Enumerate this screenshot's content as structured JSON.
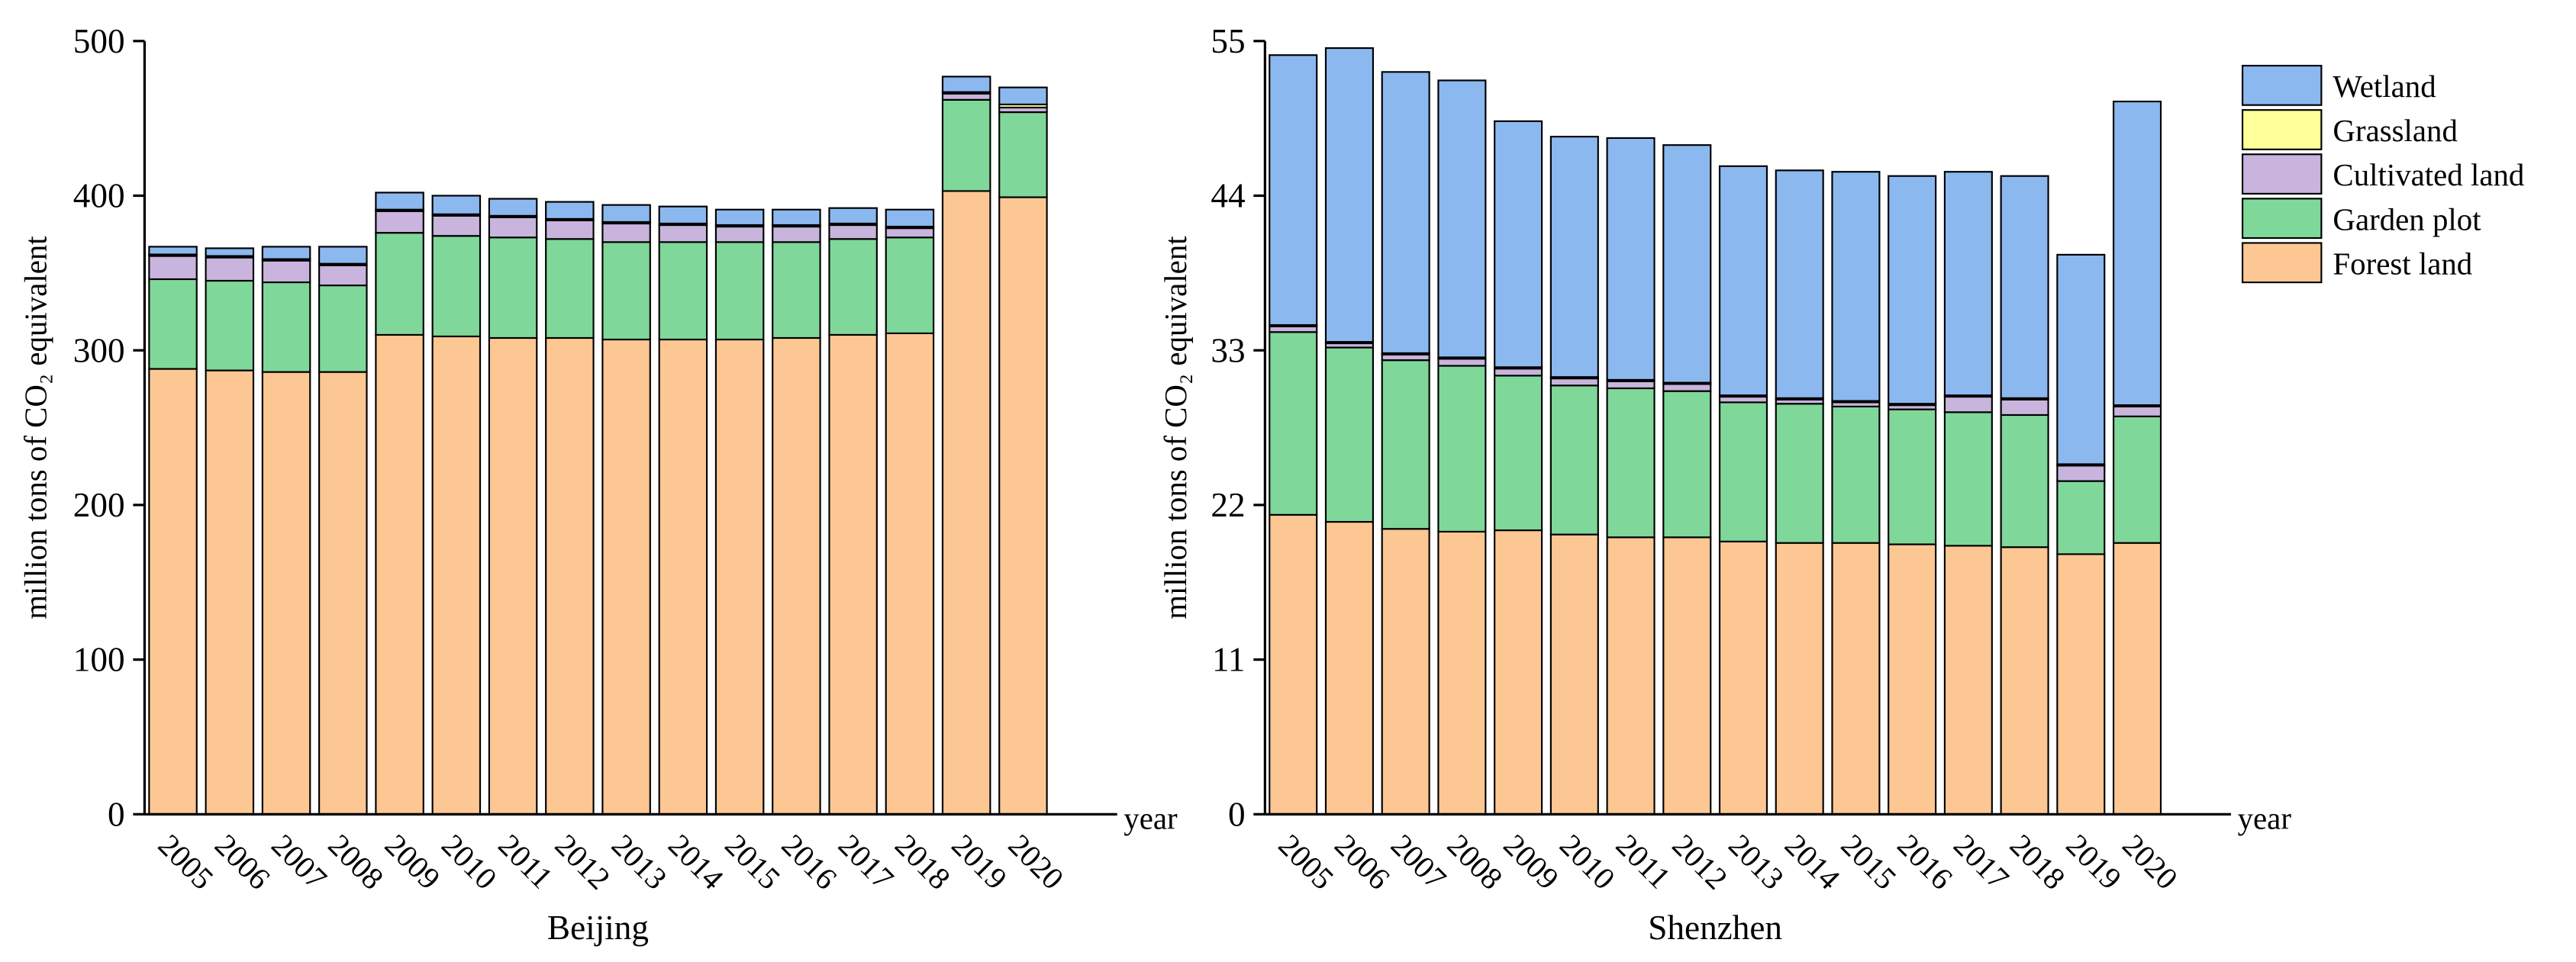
{
  "chart_data": [
    {
      "type": "stacked_bar",
      "title": "Beijing",
      "x_label": "year",
      "y_label": "million tons of CO₂ equivalent",
      "categories": [
        "2005",
        "2006",
        "2007",
        "2008",
        "2009",
        "2010",
        "2011",
        "2012",
        "2013",
        "2014",
        "2015",
        "2016",
        "2017",
        "2018",
        "2019",
        "2020"
      ],
      "ylim": [
        0,
        500
      ],
      "yticks": [
        0,
        100,
        200,
        300,
        400,
        500
      ],
      "series": [
        {
          "color": "#fdc794",
          "values": [
            288,
            287,
            286,
            286,
            310,
            309,
            308,
            308,
            307,
            307,
            307,
            308,
            310,
            311,
            403,
            399
          ]
        },
        {
          "color": "#7fd89a",
          "values": [
            58,
            58,
            58,
            56,
            66,
            65,
            65,
            64,
            63,
            63,
            63,
            62,
            62,
            62,
            59,
            55
          ]
        },
        {
          "color": "#c8b4dc",
          "values": [
            15,
            15,
            14,
            13,
            14,
            13,
            13,
            12,
            12,
            11,
            10,
            10,
            9,
            6,
            4,
            3
          ]
        },
        {
          "color": "#ffff99",
          "values": [
            1,
            1,
            1,
            1,
            1,
            1,
            1,
            1,
            1,
            1,
            1,
            1,
            1,
            1,
            1,
            2
          ]
        },
        {
          "color": "#8cb8f0",
          "values": [
            5,
            5,
            8,
            11,
            11,
            12,
            11,
            11,
            11,
            11,
            10,
            10,
            10,
            11,
            10,
            11
          ]
        }
      ]
    },
    {
      "type": "stacked_bar",
      "title": "Shenzhen",
      "x_label": "year",
      "y_label": "million tons of CO₂ equivalent",
      "categories": [
        "2005",
        "2006",
        "2007",
        "2008",
        "2009",
        "2010",
        "2011",
        "2012",
        "2013",
        "2014",
        "2015",
        "2016",
        "2017",
        "2018",
        "2019",
        "2020"
      ],
      "ylim": [
        0,
        55
      ],
      "yticks": [
        0,
        11,
        22,
        33,
        44,
        55
      ],
      "series": [
        {
          "name": "Forest land",
          "color": "#fdc794",
          "values": [
            21.3,
            20.8,
            20.3,
            20.1,
            20.2,
            19.9,
            19.7,
            19.7,
            19.4,
            19.3,
            19.3,
            19.2,
            19.1,
            19.0,
            18.5,
            19.3
          ]
        },
        {
          "name": "Garden plot",
          "color": "#7fd89a",
          "values": [
            13.0,
            12.4,
            12.0,
            11.8,
            11.0,
            10.6,
            10.6,
            10.4,
            9.9,
            9.9,
            9.7,
            9.6,
            9.5,
            9.4,
            5.2,
            9.0
          ]
        },
        {
          "name": "Cultivated land",
          "color": "#c8b4dc",
          "values": [
            0.4,
            0.3,
            0.4,
            0.5,
            0.5,
            0.5,
            0.5,
            0.5,
            0.4,
            0.3,
            0.3,
            0.3,
            1.1,
            1.1,
            1.1,
            0.7
          ]
        },
        {
          "name": "Grassland",
          "color": "#ffff99",
          "values": [
            0.1,
            0.1,
            0.1,
            0.1,
            0.1,
            0.1,
            0.1,
            0.1,
            0.1,
            0.1,
            0.1,
            0.1,
            0.1,
            0.1,
            0.1,
            0.1
          ]
        },
        {
          "name": "Wetland",
          "color": "#8cb8f0",
          "values": [
            19.2,
            20.9,
            20.0,
            19.7,
            17.5,
            17.1,
            17.2,
            16.9,
            16.3,
            16.2,
            16.3,
            16.2,
            15.9,
            15.8,
            14.9,
            21.6
          ]
        }
      ]
    }
  ]
}
